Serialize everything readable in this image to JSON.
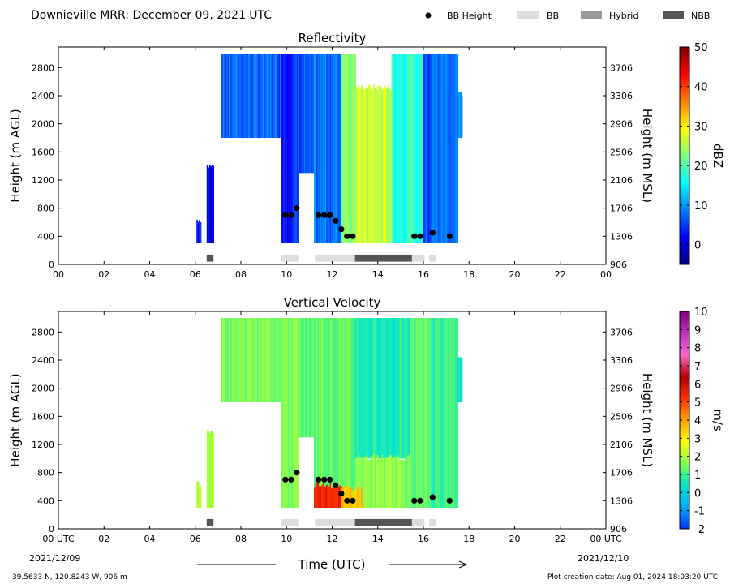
{
  "header": {
    "title": "Downieville MRR:  December 09, 2021 UTC",
    "legend": [
      {
        "label": "BB Height",
        "kind": "dot",
        "color": "#000000"
      },
      {
        "label": "BB",
        "kind": "box",
        "color": "#dddddd"
      },
      {
        "label": "Hybrid",
        "kind": "box",
        "color": "#999999"
      },
      {
        "label": "NBB",
        "kind": "box",
        "color": "#555555"
      }
    ]
  },
  "footer": {
    "xlabel": "Time (UTC)",
    "date_left": "2021/12/09",
    "date_right": "2021/12/10",
    "location": "39.5633 N, 120.8243 W, 906 m",
    "created": "Plot creation date: Aug 01, 2024 18:03:20 UTC"
  },
  "colors": {
    "bb": "#dddddd",
    "hybrid": "#999999",
    "nbb": "#555555",
    "bb_height_dot": "#000000"
  },
  "chart_data": [
    {
      "type": "heatmap",
      "title": "Reflectivity",
      "ylabel": "Height (m AGL)",
      "ylabel_right": "Height (m MSL)",
      "colorbar_label": "dBZ",
      "xlim": [
        0,
        24
      ],
      "ylim": [
        0,
        3000
      ],
      "xticks": [
        "00",
        "02",
        "04",
        "06",
        "08",
        "10",
        "12",
        "14",
        "16",
        "18",
        "20",
        "22",
        "00"
      ],
      "yticks": [
        0,
        400,
        800,
        1200,
        1600,
        2000,
        2400,
        2800
      ],
      "yticks_right": [
        "906",
        "1306",
        "1706",
        "2106",
        "2506",
        "2906",
        "3306",
        "3706"
      ],
      "colorbar_range": [
        -5,
        50
      ],
      "colorbar_ticks": [
        "0",
        "10",
        "20",
        "30",
        "40",
        "50"
      ],
      "colorbar_tick_values": [
        0,
        10,
        20,
        30,
        40,
        50
      ],
      "colorbar_stops": [
        "#00007f",
        "#0000ff",
        "#007fff",
        "#00ffff",
        "#7fff7f",
        "#ffff00",
        "#ff7f00",
        "#ff0000",
        "#7f0000"
      ],
      "echo_segments": [
        {
          "t0": 6.05,
          "t1": 6.25,
          "h0": 300,
          "h1": 620,
          "value": 3
        },
        {
          "t0": 6.5,
          "t1": 6.8,
          "h0": 300,
          "h1": 1380,
          "value": 2
        },
        {
          "t0": 7.15,
          "t1": 9.75,
          "h0": 1800,
          "h1": 3000,
          "value": 7
        },
        {
          "t0": 9.75,
          "t1": 10.5,
          "h0": 300,
          "h1": 3000,
          "value": 4
        },
        {
          "t0": 10.5,
          "t1": 11.2,
          "h0": 1300,
          "h1": 3000,
          "value": 6
        },
        {
          "t0": 11.2,
          "t1": 12.4,
          "h0": 300,
          "h1": 3000,
          "value": 8
        },
        {
          "t0": 12.4,
          "t1": 13.0,
          "h0": 300,
          "h1": 3000,
          "value": 24
        },
        {
          "t0": 13.0,
          "t1": 14.6,
          "h0": 300,
          "h1": 2500,
          "value": 26
        },
        {
          "t0": 14.6,
          "t1": 16.0,
          "h0": 300,
          "h1": 3000,
          "value": 18
        },
        {
          "t0": 16.0,
          "t1": 16.3,
          "h0": 300,
          "h1": 3000,
          "value": 6
        },
        {
          "t0": 16.3,
          "t1": 17.5,
          "h0": 300,
          "h1": 3000,
          "value": 8
        },
        {
          "t0": 17.5,
          "t1": 17.7,
          "h0": 1800,
          "h1": 2400,
          "value": 10
        }
      ],
      "bb_height": [
        {
          "t": 9.95,
          "h": 700
        },
        {
          "t": 10.2,
          "h": 700
        },
        {
          "t": 10.45,
          "h": 800
        },
        {
          "t": 11.4,
          "h": 700
        },
        {
          "t": 11.65,
          "h": 700
        },
        {
          "t": 11.9,
          "h": 700
        },
        {
          "t": 12.15,
          "h": 620
        },
        {
          "t": 12.4,
          "h": 500
        },
        {
          "t": 12.65,
          "h": 400
        },
        {
          "t": 12.9,
          "h": 400
        },
        {
          "t": 15.6,
          "h": 400
        },
        {
          "t": 15.85,
          "h": 400
        },
        {
          "t": 16.4,
          "h": 450
        },
        {
          "t": 17.15,
          "h": 400
        }
      ],
      "bb_bars": [
        {
          "t0": 6.5,
          "t1": 6.8,
          "kind": "NBB"
        },
        {
          "t0": 9.75,
          "t1": 10.55,
          "kind": "BB"
        },
        {
          "t0": 11.25,
          "t1": 13.0,
          "kind": "BB"
        },
        {
          "t0": 13.0,
          "t1": 15.5,
          "kind": "NBB"
        },
        {
          "t0": 15.5,
          "t1": 16.05,
          "kind": "BB"
        },
        {
          "t0": 16.25,
          "t1": 16.55,
          "kind": "BB"
        }
      ]
    },
    {
      "type": "heatmap",
      "title": "Vertical Velocity",
      "ylabel": "Height (m AGL)",
      "ylabel_right": "Height (m MSL)",
      "colorbar_label": "m/s",
      "xlim": [
        0,
        24
      ],
      "ylim": [
        0,
        3000
      ],
      "xticks": [
        "00 UTC",
        "02",
        "04",
        "06",
        "08",
        "10",
        "12",
        "14",
        "16",
        "18",
        "20",
        "22",
        "00 UTC"
      ],
      "yticks": [
        0,
        400,
        800,
        1200,
        1600,
        2000,
        2400,
        2800
      ],
      "yticks_right": [
        "906",
        "1306",
        "1706",
        "2106",
        "2506",
        "2906",
        "3306",
        "3706"
      ],
      "colorbar_range": [
        -2,
        10
      ],
      "colorbar_ticks": [
        "-2",
        "-1",
        "0",
        "1",
        "2",
        "3",
        "4",
        "5",
        "6",
        "7",
        "8",
        "9",
        "10"
      ],
      "colorbar_tick_values": [
        -2,
        -1,
        0,
        1,
        2,
        3,
        4,
        5,
        6,
        7,
        8,
        9,
        10
      ],
      "colorbar_stops": [
        "#0033ff",
        "#00aaff",
        "#00e5c8",
        "#7fff50",
        "#ffff00",
        "#ffa000",
        "#ff3000",
        "#b00000",
        "#ff66cc",
        "#c030c0",
        "#800080"
      ],
      "echo_segments": [
        {
          "t0": 6.05,
          "t1": 6.25,
          "h0": 300,
          "h1": 620,
          "value": 2
        },
        {
          "t0": 6.5,
          "t1": 6.8,
          "h0": 300,
          "h1": 1380,
          "value": 2
        },
        {
          "t0": 7.15,
          "t1": 9.75,
          "h0": 1800,
          "h1": 3000,
          "value": 1.6
        },
        {
          "t0": 9.75,
          "t1": 10.5,
          "h0": 300,
          "h1": 3000,
          "value": 1.6
        },
        {
          "t0": 10.5,
          "t1": 11.2,
          "h0": 1300,
          "h1": 3000,
          "value": 1.2
        },
        {
          "t0": 11.2,
          "t1": 12.4,
          "h0": 300,
          "h1": 3000,
          "value": 1.4
        },
        {
          "t0": 12.4,
          "t1": 13.0,
          "h0": 300,
          "h1": 3000,
          "value": 1.2
        },
        {
          "t0": 13.0,
          "t1": 15.4,
          "h0": 1000,
          "h1": 3000,
          "value": 0.6
        },
        {
          "t0": 13.0,
          "t1": 15.4,
          "h0": 300,
          "h1": 1000,
          "value": 1.7
        },
        {
          "t0": 15.4,
          "t1": 16.3,
          "h0": 300,
          "h1": 3000,
          "value": 1.2
        },
        {
          "t0": 16.3,
          "t1": 17.5,
          "h0": 300,
          "h1": 3000,
          "value": 1.0
        },
        {
          "t0": 17.5,
          "t1": 17.7,
          "h0": 1800,
          "h1": 2400,
          "value": 0.4
        },
        {
          "t0": 11.2,
          "t1": 12.4,
          "h0": 300,
          "h1": 600,
          "value": 5.5
        },
        {
          "t0": 12.4,
          "t1": 13.3,
          "h0": 300,
          "h1": 550,
          "value": 3.6
        }
      ],
      "bb_height": [
        {
          "t": 9.95,
          "h": 700
        },
        {
          "t": 10.2,
          "h": 700
        },
        {
          "t": 10.45,
          "h": 800
        },
        {
          "t": 11.4,
          "h": 700
        },
        {
          "t": 11.65,
          "h": 700
        },
        {
          "t": 11.9,
          "h": 700
        },
        {
          "t": 12.15,
          "h": 620
        },
        {
          "t": 12.4,
          "h": 500
        },
        {
          "t": 12.65,
          "h": 400
        },
        {
          "t": 12.9,
          "h": 400
        },
        {
          "t": 15.6,
          "h": 400
        },
        {
          "t": 15.85,
          "h": 400
        },
        {
          "t": 16.4,
          "h": 450
        },
        {
          "t": 17.15,
          "h": 400
        }
      ],
      "bb_bars": [
        {
          "t0": 6.5,
          "t1": 6.8,
          "kind": "NBB"
        },
        {
          "t0": 9.75,
          "t1": 10.55,
          "kind": "BB"
        },
        {
          "t0": 11.25,
          "t1": 13.0,
          "kind": "BB"
        },
        {
          "t0": 13.0,
          "t1": 15.5,
          "kind": "NBB"
        },
        {
          "t0": 15.5,
          "t1": 16.05,
          "kind": "BB"
        },
        {
          "t0": 16.25,
          "t1": 16.55,
          "kind": "BB"
        }
      ]
    }
  ]
}
